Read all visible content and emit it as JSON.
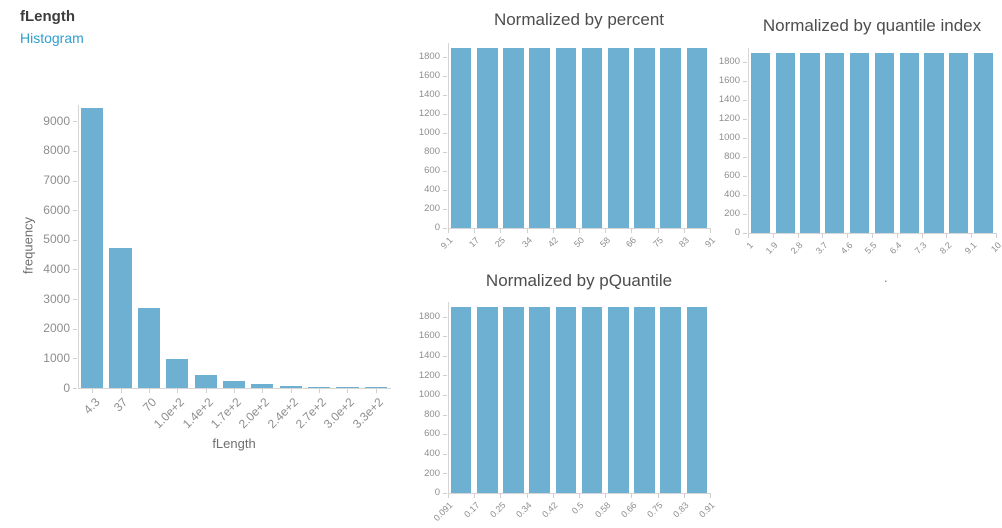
{
  "header": {
    "title": "fLength",
    "subtitle": "Histogram"
  },
  "colors": {
    "bar": "#6eb0d2",
    "axis_text": "#8e8e8e",
    "title_text": "#4d4d4d",
    "link": "#2e9fd0",
    "axis_line": "#d6d6d6"
  },
  "stray_mark": ".",
  "chart_data": [
    {
      "id": "main",
      "type": "bar",
      "title": "",
      "xlabel": "fLength",
      "ylabel": "frequency",
      "categories": [
        "4.3",
        "37",
        "70",
        "1.0e+2",
        "1.4e+2",
        "1.7e+2",
        "2.0e+2",
        "2.4e+2",
        "2.7e+2",
        "3.0e+2",
        "3.3e+2"
      ],
      "values": [
        9450,
        4730,
        2690,
        975,
        450,
        230,
        150,
        70,
        35,
        25,
        20
      ],
      "yticks": [
        0,
        1000,
        2000,
        3000,
        4000,
        5000,
        6000,
        7000,
        8000,
        9000
      ],
      "ylim": [
        0,
        9550
      ],
      "grid": false,
      "legend": "none"
    },
    {
      "id": "percent",
      "type": "bar",
      "title": "Normalized by percent",
      "xlabel": "",
      "ylabel": "",
      "categories": [
        "9.1",
        "17",
        "25",
        "34",
        "42",
        "50",
        "58",
        "66",
        "75",
        "83",
        "91"
      ],
      "values": [
        1902,
        1902,
        1902,
        1902,
        1902,
        1902,
        1902,
        1902,
        1902,
        1902
      ],
      "yticks": [
        0,
        200,
        400,
        600,
        800,
        1000,
        1200,
        1400,
        1600,
        1800
      ],
      "ylim": [
        0,
        1950
      ],
      "grid": false,
      "legend": "none"
    },
    {
      "id": "qindex",
      "type": "bar",
      "title": "Normalized by quantile index",
      "xlabel": "",
      "ylabel": "",
      "categories": [
        "1",
        "1.9",
        "2.8",
        "3.7",
        "4.6",
        "5.5",
        "6.4",
        "7.3",
        "8.2",
        "9.1",
        "10"
      ],
      "values": [
        1902,
        1902,
        1902,
        1902,
        1902,
        1902,
        1902,
        1902,
        1902,
        1902
      ],
      "yticks": [
        0,
        200,
        400,
        600,
        800,
        1000,
        1200,
        1400,
        1600,
        1800
      ],
      "ylim": [
        0,
        1950
      ],
      "grid": false,
      "legend": "none"
    },
    {
      "id": "pquant",
      "type": "bar",
      "title": "Normalized by pQuantile",
      "xlabel": "",
      "ylabel": "",
      "categories": [
        "0.091",
        "0.17",
        "0.25",
        "0.34",
        "0.42",
        "0.5",
        "0.58",
        "0.66",
        "0.75",
        "0.83",
        "0.91"
      ],
      "values": [
        1902,
        1902,
        1902,
        1902,
        1902,
        1902,
        1902,
        1902,
        1902,
        1902
      ],
      "yticks": [
        0,
        200,
        400,
        600,
        800,
        1000,
        1200,
        1400,
        1600,
        1800
      ],
      "ylim": [
        0,
        1950
      ],
      "grid": false,
      "legend": "none"
    }
  ]
}
